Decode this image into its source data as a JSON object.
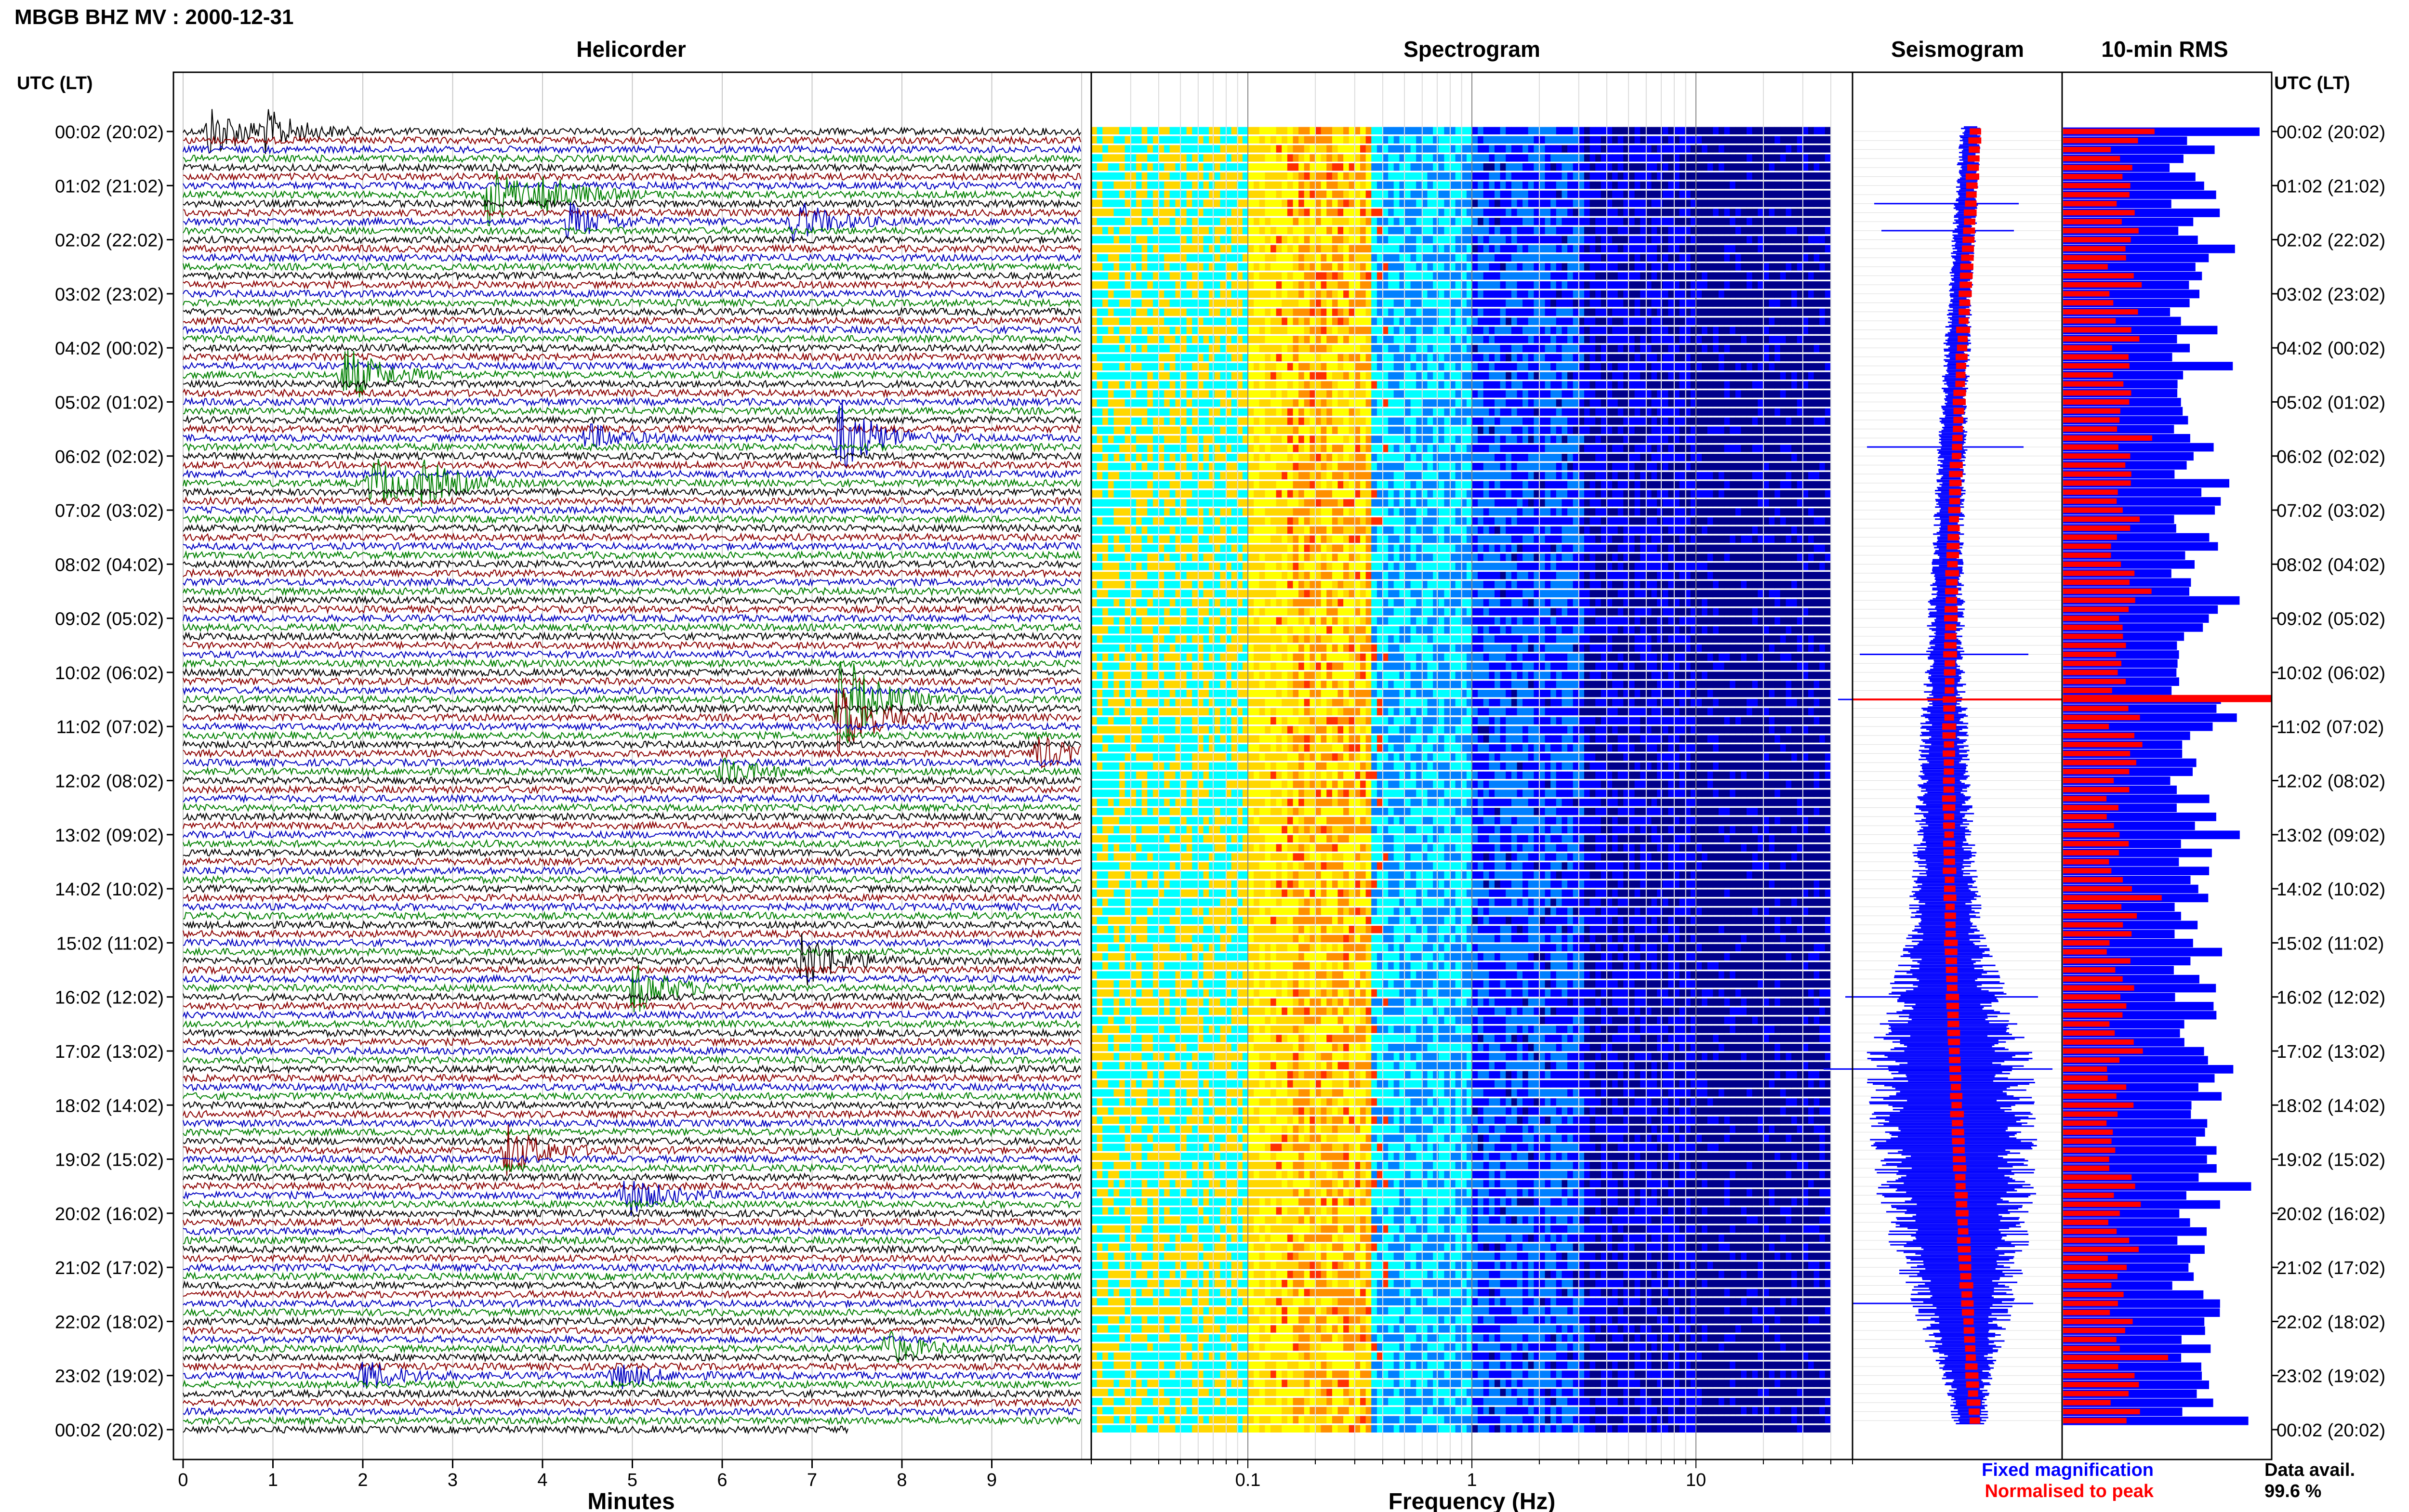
{
  "header": {
    "title": "MBGB BHZ MV : 2000-12-31"
  },
  "colors": {
    "trace_cycle": [
      "#000000",
      "#8b0000",
      "#0000c0",
      "#008000"
    ],
    "fixed": "#0000ff",
    "normalised": "#ff0000",
    "axis": "#000000"
  },
  "row_times": [
    "00:02 (20:02)",
    "01:02 (21:02)",
    "02:02 (22:02)",
    "03:02 (23:02)",
    "04:02 (00:02)",
    "05:02 (01:02)",
    "06:02 (02:02)",
    "07:02 (03:02)",
    "08:02 (04:02)",
    "09:02 (05:02)",
    "10:02 (06:02)",
    "11:02 (07:02)",
    "12:02 (08:02)",
    "13:02 (09:02)",
    "14:02 (10:02)",
    "15:02 (11:02)",
    "16:02 (12:02)",
    "17:02 (13:02)",
    "18:02 (14:02)",
    "19:02 (15:02)",
    "20:02 (16:02)",
    "21:02 (17:02)",
    "22:02 (18:02)",
    "23:02 (19:02)",
    "00:02 (20:02)"
  ],
  "footer": {
    "legend_fixed": "Fixed magnification",
    "legend_normalised": "Normalised to peak",
    "data_avail_label": "Data avail.",
    "data_avail_value": "99.6 %"
  },
  "chart_data": [
    {
      "type": "line",
      "title": "Helicorder",
      "ylabel": "UTC (LT)",
      "xlabel": "Minutes",
      "xlim": [
        0,
        10
      ],
      "x_ticks": [
        "0",
        "1",
        "2",
        "3",
        "4",
        "5",
        "6",
        "7",
        "8",
        "9"
      ],
      "lines_per_hour": 6,
      "events": [
        {
          "row": 0,
          "minute": 0.3,
          "amp": 3.0
        },
        {
          "row": 0,
          "minute": 0.9,
          "amp": 2.0
        },
        {
          "row": 7,
          "minute": 3.4,
          "amp": 3.5
        },
        {
          "row": 7,
          "minute": 4.0,
          "amp": 2.0
        },
        {
          "row": 10,
          "minute": 6.8,
          "amp": 2.5
        },
        {
          "row": 10,
          "minute": 4.3,
          "amp": 2.0
        },
        {
          "row": 27,
          "minute": 1.8,
          "amp": 3.5
        },
        {
          "row": 34,
          "minute": 7.3,
          "amp": 4.5
        },
        {
          "row": 34,
          "minute": 4.5,
          "amp": 1.5
        },
        {
          "row": 39,
          "minute": 2.1,
          "amp": 3.0
        },
        {
          "row": 39,
          "minute": 2.6,
          "amp": 2.5
        },
        {
          "row": 63,
          "minute": 7.3,
          "amp": 6.0
        },
        {
          "row": 65,
          "minute": 7.3,
          "amp": 4.5
        },
        {
          "row": 69,
          "minute": 9.5,
          "amp": 2.0
        },
        {
          "row": 71,
          "minute": 6.0,
          "amp": 1.5
        },
        {
          "row": 92,
          "minute": 6.9,
          "amp": 3.5
        },
        {
          "row": 95,
          "minute": 5.0,
          "amp": 3.0
        },
        {
          "row": 113,
          "minute": 3.6,
          "amp": 3.0
        },
        {
          "row": 118,
          "minute": 4.9,
          "amp": 2.5
        },
        {
          "row": 135,
          "minute": 7.8,
          "amp": 2.0
        },
        {
          "row": 138,
          "minute": 2.0,
          "amp": 1.8
        },
        {
          "row": 138,
          "minute": 4.8,
          "amp": 1.5
        }
      ]
    },
    {
      "type": "heatmap",
      "title": "Spectrogram",
      "xlabel": "Frequency (Hz)",
      "x_scale": "log",
      "xlim": [
        0.02,
        50
      ],
      "x_ticks": [
        "0.1",
        "1",
        "10"
      ],
      "data_fmax_hz": 40,
      "colormap": [
        "#ffff00",
        "#ffd700",
        "#00ffff",
        "#0080ff",
        "#0000ff",
        "#00008b"
      ],
      "spectrum_peak_hz": 0.25
    },
    {
      "type": "line",
      "title": "Seismogram",
      "series": [
        {
          "name": "Fixed magnification",
          "hourly_envelope": [
            0.6,
            0.7,
            0.7,
            0.7,
            0.8,
            0.8,
            0.9,
            0.9,
            1.0,
            1.1,
            1.2,
            1.4,
            1.6,
            1.8,
            2.0,
            2.5,
            3.5,
            4.8,
            5.0,
            4.8,
            4.5,
            3.8,
            2.8,
            1.5,
            1.0
          ]
        },
        {
          "name": "Normalised to peak",
          "hourly_envelope": [
            0.3,
            0.3,
            0.3,
            0.3,
            0.3,
            0.3,
            0.3,
            0.3,
            0.3,
            0.3,
            0.3,
            0.3,
            0.3,
            0.3,
            0.3,
            0.3,
            0.3,
            0.3,
            0.3,
            0.3,
            0.3,
            0.3,
            0.3,
            0.3,
            0.3
          ]
        }
      ]
    },
    {
      "type": "bar",
      "title": "10-min RMS",
      "series": [
        {
          "name": "Fixed magnification"
        },
        {
          "name": "Normalised to peak"
        }
      ]
    }
  ]
}
